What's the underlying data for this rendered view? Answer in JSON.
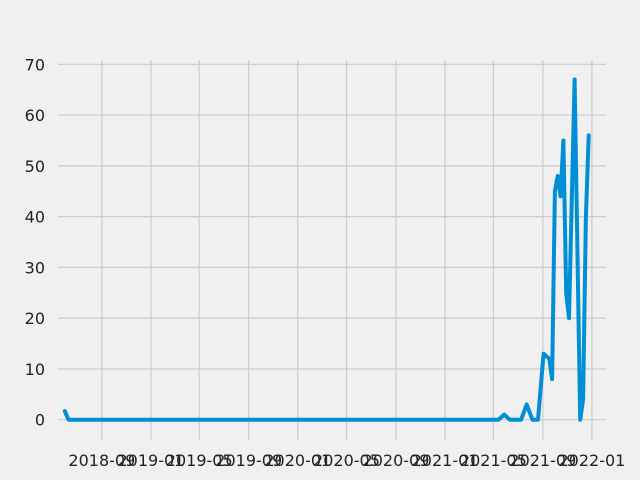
{
  "chart_data": {
    "type": "line",
    "title": "",
    "xlabel": "",
    "ylabel": "",
    "style": "fivethirtyeight",
    "grid": true,
    "legend": "none",
    "ylim": [
      -4,
      74
    ],
    "xlim": [
      "2018-05-15",
      "2022-02-05"
    ],
    "y_ticks": [
      0,
      10,
      20,
      30,
      40,
      50,
      60,
      70
    ],
    "x_ticks": [
      {
        "date": "2018-09-01",
        "label": "2018-09"
      },
      {
        "date": "2019-01-01",
        "label": "2019-01"
      },
      {
        "date": "2019-05-01",
        "label": "2019-05"
      },
      {
        "date": "2019-09-01",
        "label": "2019-09"
      },
      {
        "date": "2020-01-01",
        "label": "2020-01"
      },
      {
        "date": "2020-05-01",
        "label": "2020-05"
      },
      {
        "date": "2020-09-01",
        "label": "2020-09"
      },
      {
        "date": "2021-01-01",
        "label": "2021-01"
      },
      {
        "date": "2021-05-01",
        "label": "2021-05"
      },
      {
        "date": "2021-09-01",
        "label": "2021-09"
      },
      {
        "date": "2022-01-01",
        "label": "2022-01"
      }
    ],
    "series": [
      {
        "color": "#008fd5",
        "points": [
          {
            "x": "2018-06-01",
            "y": 1.7
          },
          {
            "x": "2018-06-10",
            "y": 0
          },
          {
            "x": "2021-05-14",
            "y": 0
          },
          {
            "x": "2021-05-28",
            "y": 1
          },
          {
            "x": "2021-06-11",
            "y": 0
          },
          {
            "x": "2021-07-09",
            "y": 0
          },
          {
            "x": "2021-07-23",
            "y": 3
          },
          {
            "x": "2021-08-06",
            "y": 0
          },
          {
            "x": "2021-08-20",
            "y": 0
          },
          {
            "x": "2021-09-03",
            "y": 13
          },
          {
            "x": "2021-09-17",
            "y": 12
          },
          {
            "x": "2021-09-24",
            "y": 8
          },
          {
            "x": "2021-10-01",
            "y": 45
          },
          {
            "x": "2021-10-08",
            "y": 48
          },
          {
            "x": "2021-10-15",
            "y": 44
          },
          {
            "x": "2021-10-22",
            "y": 55
          },
          {
            "x": "2021-10-29",
            "y": 25
          },
          {
            "x": "2021-11-05",
            "y": 20
          },
          {
            "x": "2021-11-19",
            "y": 67
          },
          {
            "x": "2021-12-03",
            "y": 0
          },
          {
            "x": "2021-12-10",
            "y": 4
          },
          {
            "x": "2021-12-17",
            "y": 40
          },
          {
            "x": "2021-12-24",
            "y": 56
          }
        ]
      }
    ]
  }
}
